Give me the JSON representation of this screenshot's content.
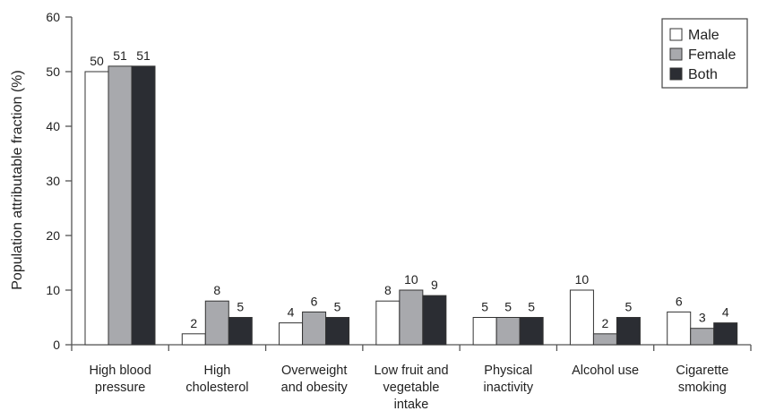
{
  "chart_data": {
    "type": "bar",
    "title": "",
    "xlabel": "",
    "ylabel": "Population attributable fraction (%)",
    "ylim": [
      0,
      60
    ],
    "yticks": [
      0,
      10,
      20,
      30,
      40,
      50,
      60
    ],
    "grid": false,
    "legend_position": "top-right",
    "categories": [
      [
        "High blood",
        "pressure"
      ],
      [
        "High",
        "cholesterol"
      ],
      [
        "Overweight",
        "and obesity"
      ],
      [
        "Low fruit and",
        "vegetable",
        "intake"
      ],
      [
        "Physical",
        "inactivity"
      ],
      [
        "Alcohol use"
      ],
      [
        "Cigarette",
        "smoking"
      ]
    ],
    "series": [
      {
        "name": "Male",
        "color": "#ffffff",
        "values": [
          50,
          2,
          4,
          8,
          5,
          10,
          6
        ]
      },
      {
        "name": "Female",
        "color": "#a8a9ad",
        "values": [
          51,
          8,
          6,
          10,
          5,
          2,
          3
        ]
      },
      {
        "name": "Both",
        "color": "#2b2d33",
        "values": [
          51,
          5,
          5,
          9,
          5,
          5,
          4
        ]
      }
    ],
    "bar_stroke": "#333333",
    "axis_color": "#555555"
  }
}
